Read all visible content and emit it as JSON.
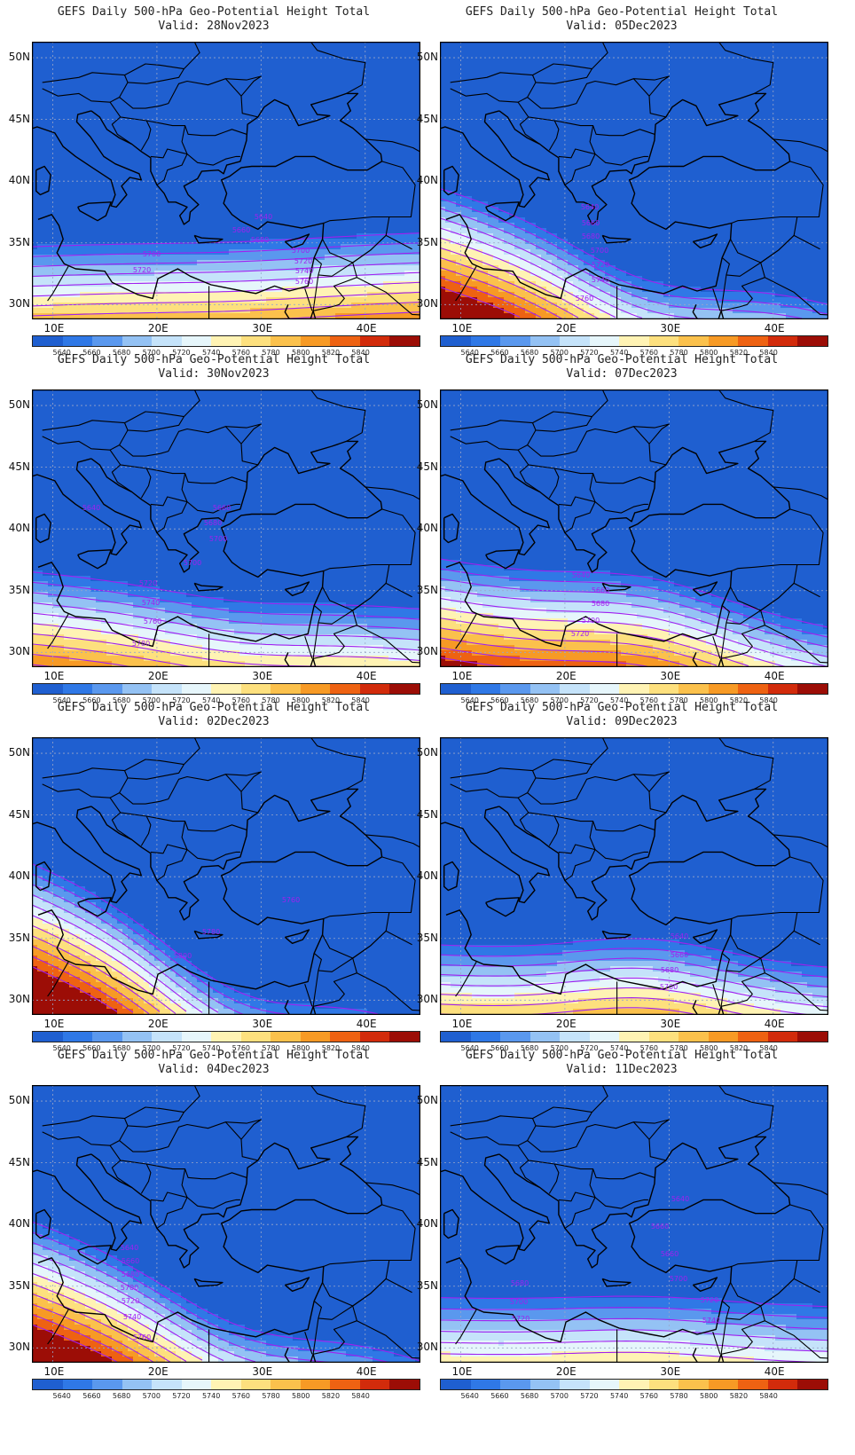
{
  "figure_title": "GEFS Daily 500-hPa Geo-Potential Height Total",
  "valid_prefix": "Valid:",
  "lat_labels": [
    "50N",
    "45N",
    "40N",
    "35N",
    "30N"
  ],
  "lon_labels": [
    "10E",
    "20E",
    "30E",
    "40E"
  ],
  "colorbar": {
    "levels": [
      "5640",
      "5660",
      "5680",
      "5700",
      "5720",
      "5740",
      "5760",
      "5780",
      "5800",
      "5820",
      "5840"
    ],
    "colors": [
      "#1f5fd0",
      "#2f78e6",
      "#5a98ee",
      "#94c2f4",
      "#c5e3fa",
      "#e6f6fb",
      "#fff3b4",
      "#fde07e",
      "#fbc14c",
      "#f79a25",
      "#ee6212",
      "#d22b0b",
      "#9c0d06"
    ]
  },
  "panels": [
    {
      "valid": "28Nov2023",
      "params": {
        "base": 5620,
        "slope": 25,
        "amp": 0.2,
        "tilt": -0.03
      }
    },
    {
      "valid": "05Dec2023",
      "params": {
        "base": 5620,
        "slope": 25,
        "amp": 2.5,
        "tilt": 0.25
      }
    },
    {
      "valid": "30Nov2023",
      "params": {
        "base": 5620,
        "slope": 24,
        "amp": 0.8,
        "tilt": 0.08
      }
    },
    {
      "valid": "07Dec2023",
      "params": {
        "base": 5615,
        "slope": 25,
        "amp": -1.5,
        "tilt": 0.15
      }
    },
    {
      "valid": "02Dec2023",
      "params": {
        "base": 5620,
        "slope": 24,
        "amp": 3.5,
        "tilt": 0.35
      }
    },
    {
      "valid": "09Dec2023",
      "params": {
        "base": 5580,
        "slope": 25,
        "amp": -1.5,
        "tilt": 0.05
      }
    },
    {
      "valid": "04Dec2023",
      "params": {
        "base": 5620,
        "slope": 24,
        "amp": 2.5,
        "tilt": 0.3
      }
    },
    {
      "valid": "11Dec2023",
      "params": {
        "base": 5590,
        "slope": 22,
        "amp": -0.5,
        "tilt": 0.02
      }
    }
  ],
  "contour_labels": {
    "0": [
      [
        "5640",
        261,
        200
      ],
      [
        "5660",
        236,
        215
      ],
      [
        "5680",
        257,
        226
      ],
      [
        "5700",
        135,
        242
      ],
      [
        "5720",
        124,
        260
      ],
      [
        "5700",
        303,
        238
      ],
      [
        "5720",
        306,
        250
      ],
      [
        "5740",
        307,
        261
      ],
      [
        "5760",
        307,
        273
      ]
    ],
    "1": [
      [
        "5640",
        169,
        189
      ],
      [
        "5660",
        170,
        207
      ],
      [
        "5680",
        170,
        222
      ],
      [
        "5700",
        180,
        238
      ],
      [
        "5720",
        181,
        254
      ],
      [
        "5740",
        181,
        271
      ],
      [
        "5760",
        163,
        292
      ]
    ],
    "2": [
      [
        "5640",
        67,
        136
      ],
      [
        "5660",
        214,
        136
      ],
      [
        "5680",
        204,
        153
      ],
      [
        "5700",
        210,
        171
      ],
      [
        "5700",
        181,
        198
      ],
      [
        "5720",
        131,
        221
      ],
      [
        "5740",
        134,
        243
      ],
      [
        "5760",
        136,
        264
      ],
      [
        "5780",
        123,
        289
      ]
    ],
    "3": [
      [
        "5640",
        159,
        212
      ],
      [
        "5660",
        181,
        229
      ],
      [
        "5680",
        181,
        244
      ],
      [
        "5700",
        170,
        263
      ],
      [
        "5720",
        158,
        278
      ]
    ],
    "4": [
      [
        "5760",
        292,
        186
      ],
      [
        "5780",
        202,
        222
      ],
      [
        "5800",
        170,
        249
      ]
    ],
    "5": [
      [
        "5640",
        270,
        227
      ],
      [
        "5660",
        270,
        248
      ],
      [
        "5680",
        259,
        265
      ],
      [
        "5700",
        258,
        284
      ]
    ],
    "6": [
      [
        "5640",
        110,
        186
      ],
      [
        "5660",
        111,
        201
      ],
      [
        "5680",
        111,
        216
      ],
      [
        "5700",
        110,
        231
      ],
      [
        "5720",
        111,
        246
      ],
      [
        "5740",
        113,
        264
      ],
      [
        "5760",
        124,
        287
      ]
    ],
    "7": [
      [
        "5640",
        271,
        131
      ],
      [
        "5660",
        248,
        162
      ],
      [
        "5660",
        259,
        193
      ],
      [
        "5700",
        269,
        221
      ],
      [
        "5680",
        90,
        226
      ],
      [
        "5700",
        89,
        247
      ],
      [
        "5720",
        91,
        266
      ],
      [
        "5720",
        304,
        245
      ],
      [
        "5740",
        306,
        268
      ]
    ]
  }
}
